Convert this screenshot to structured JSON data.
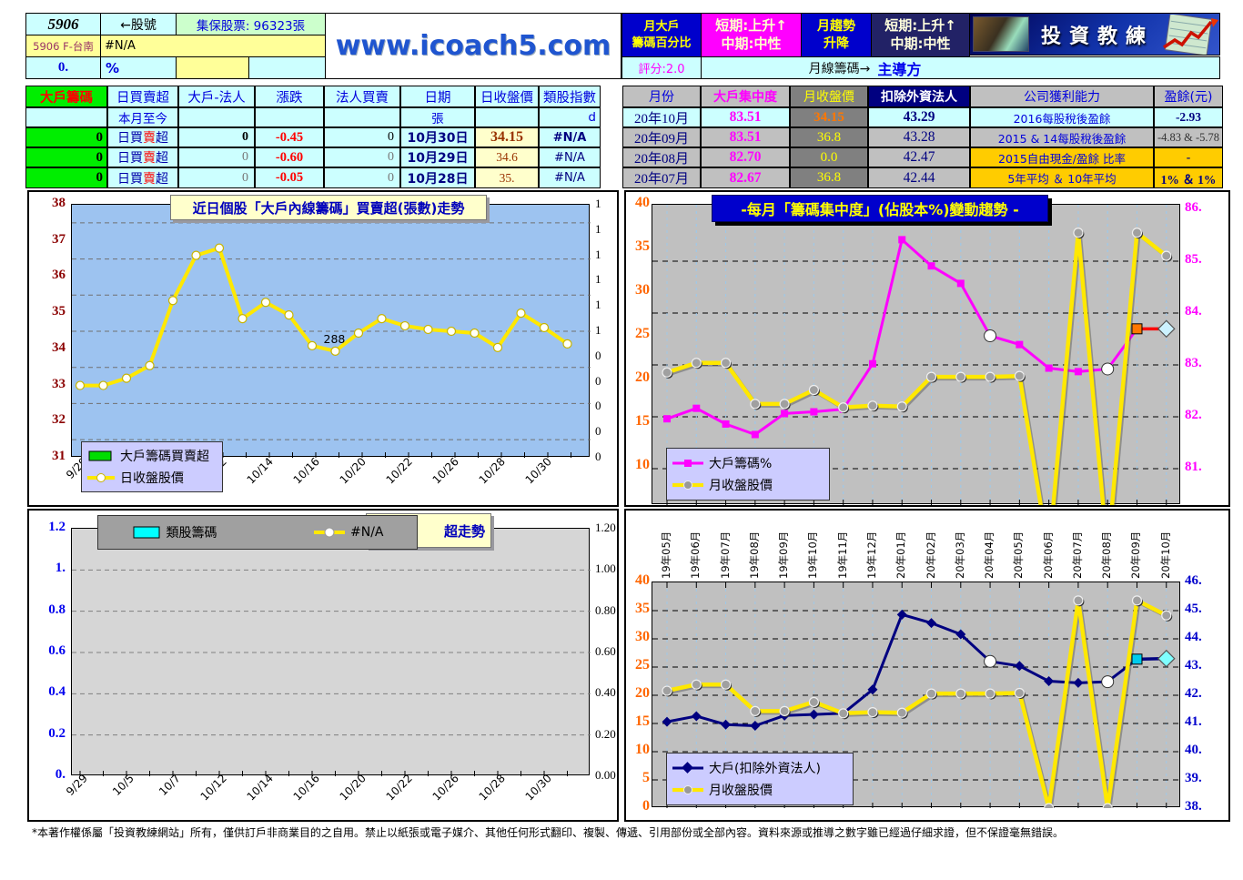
{
  "header": {
    "stock_id": "5906",
    "stock_id_arrow": "←股號",
    "custody_shares": "集保股票: 96323張",
    "stock_name": "5906 F-台南",
    "name_na": "#N/A",
    "zero_value": "0.",
    "percent_label": "%",
    "website": "www.icoach5.com",
    "monthly_major_line1": "月大戶",
    "monthly_major_line2": "籌碼百分比",
    "signal1_line1": "短期:上升↑",
    "signal1_line2": "中期:中性",
    "trend_line1": "月趨勢",
    "trend_line2": "升降",
    "signal2_line1": "短期:上升↑",
    "signal2_line2": "中期:中性",
    "logo_text": "投資教練",
    "score": "評分:2.0",
    "monthly_chips_label": "月線籌碼→",
    "dominant_label": "主導方"
  },
  "left_table": {
    "headers": [
      "大戶籌碼",
      "日買賣超",
      "大戶-法人",
      "漲跌",
      "法人買賣",
      "日期",
      "日收盤價",
      "類股指數"
    ],
    "subrow": {
      "c1": "本月至今",
      "c5": "張",
      "c7": "d"
    },
    "rows": [
      {
        "chips": "0",
        "daily": "日買賣超",
        "red_char": "賣",
        "major_legal": "0",
        "change": "-0.45",
        "legal_trade": "0",
        "date": "10月30日",
        "close": "34.15",
        "sector_index": "#N/A"
      },
      {
        "chips": "0",
        "daily": "日買賣超",
        "red_char": "賣",
        "major_legal": "0",
        "change": "-0.60",
        "legal_trade": "0",
        "date": "10月29日",
        "close": "34.6",
        "sector_index": "#N/A"
      },
      {
        "chips": "0",
        "daily": "日買賣超",
        "red_char": "賣",
        "major_legal": "0",
        "change": "-0.05",
        "legal_trade": "0",
        "date": "10月28日",
        "close": "35.",
        "sector_index": "#N/A"
      }
    ]
  },
  "right_table": {
    "headers": [
      "月份",
      "大戶集中度",
      "月收盤價",
      "扣除外資法人",
      "公司獲利能力",
      "盈餘(元)"
    ],
    "rows": [
      {
        "month": "20年10月",
        "concentration": "83.51",
        "close": "34.15",
        "ex_foreign": "43.29",
        "profit_label": "2016每股稅後盈餘",
        "profit_value": "-2.93"
      },
      {
        "month": "20年09月",
        "concentration": "83.51",
        "close": "36.8",
        "ex_foreign": "43.28",
        "profit_label": "2015 & 14每股稅後盈餘",
        "profit_value": "-4.83 & -5.78"
      },
      {
        "month": "20年08月",
        "concentration": "82.70",
        "close": "0.0",
        "ex_foreign": "42.47",
        "profit_label": "2015自由現金/盈餘 比率",
        "profit_value": "-"
      },
      {
        "month": "20年07月",
        "concentration": "82.67",
        "close": "36.8",
        "ex_foreign": "42.44",
        "profit_label": "5年平均 ＆ 10年平均",
        "profit_value": "1% ＆ 1%"
      }
    ]
  },
  "chart_data": [
    {
      "id": "daily-insider-chips",
      "type": "line",
      "title": "近日個股「大戶內線籌碼」買賣超(張數)走勢",
      "x_tick_labels": [
        "9/29",
        "10/5",
        "10/7",
        "10/12",
        "10/14",
        "10/16",
        "10/20",
        "10/22",
        "10/26",
        "10/28",
        "10/30"
      ],
      "left_axis": {
        "ticks": [
          "38",
          "37",
          "36",
          "35",
          "34",
          "33",
          "32",
          "31"
        ],
        "min": 31,
        "max": 38,
        "color": "#8B0000"
      },
      "right_axis": {
        "ticks": [
          "1",
          "1",
          "1",
          "1",
          "1",
          "1",
          "0",
          "0",
          "0",
          "0",
          "0"
        ],
        "color": "#000000"
      },
      "plot_bg": "#9DC3F0",
      "annotation": {
        "text": "288",
        "index": 11
      },
      "series": [
        {
          "name": "大戶籌碼買賣超",
          "type": "bar",
          "color": "#00DD00",
          "values": []
        },
        {
          "name": "日收盤股價",
          "type": "line",
          "color": "#FFE800",
          "marker": "white-circle",
          "values": [
            33.0,
            33.0,
            33.2,
            33.55,
            35.35,
            36.6,
            36.8,
            34.85,
            35.3,
            34.95,
            34.1,
            33.95,
            34.45,
            34.85,
            34.65,
            34.55,
            34.5,
            34.45,
            34.05,
            35.0,
            34.6,
            34.15
          ]
        }
      ]
    },
    {
      "id": "sector-chips",
      "type": "line",
      "partial_title": "超走勢",
      "x_tick_labels": [
        "9/29",
        "10/5",
        "10/7",
        "10/12",
        "10/14",
        "10/16",
        "10/20",
        "10/22",
        "10/26",
        "10/28",
        "10/30"
      ],
      "left_axis": {
        "ticks": [
          "1.2",
          "1.",
          "0.8",
          "0.6",
          "0.4",
          "0.2",
          "0."
        ],
        "min": 0,
        "max": 1.2,
        "color": "#0000EE"
      },
      "right_axis": {
        "ticks": [
          "1.20",
          "1.00",
          "0.80",
          "0.60",
          "0.40",
          "0.20",
          "0.00"
        ],
        "color": "#000000"
      },
      "plot_bg": "#D6D6D6",
      "series": [
        {
          "name": "類股籌碼",
          "type": "bar",
          "color": "#00FFFF",
          "values": []
        },
        {
          "name": "#N/A",
          "type": "line",
          "color": "#FFE800",
          "marker": "white-circle",
          "values": []
        }
      ]
    },
    {
      "id": "monthly-concentration",
      "type": "line",
      "title": "-每月「籌碼集中度」(佔股本%)變動趨勢 -",
      "categories": [
        "19年05月",
        "19年06月",
        "19年07月",
        "19年08月",
        "19年09月",
        "19年10月",
        "19年11月",
        "19年12月",
        "20年01月",
        "20年02月",
        "20年03月",
        "20年04月",
        "20年05月",
        "20年06月",
        "20年07月",
        "20年08月",
        "20年09月",
        "20年10月"
      ],
      "left_axis": {
        "ticks": [
          "40",
          "35",
          "30",
          "25",
          "20",
          "15",
          "10"
        ],
        "min": 5.6,
        "max": 40,
        "color": "#FF6600"
      },
      "right_axis": {
        "ticks": [
          "86.",
          "85.",
          "84.",
          "83.",
          "82.",
          "81."
        ],
        "color": "#FF00FF"
      },
      "plot_bg": "#C0C0C0",
      "series": [
        {
          "name": "大戶籌碼%",
          "axis": "right",
          "color": "#FF00FF",
          "marker": "square",
          "values_plot_scale": [
            15.5,
            16.7,
            14.9,
            13.7,
            16.1,
            16.3,
            16.6,
            21.8,
            36.0,
            33.0,
            31.0,
            25.0,
            24.0,
            21.3,
            20.9,
            21.2,
            25.8,
            25.8
          ],
          "known_values": {
            "20年07月": 82.67,
            "20年08月": 82.7,
            "20年09月": 83.51,
            "20年10月": 83.51
          }
        },
        {
          "name": "月收盤股價",
          "axis": "left",
          "color": "#FFE800",
          "marker": "gray-circle",
          "values_plot_scale": [
            20.8,
            21.9,
            21.9,
            17.2,
            17.2,
            18.8,
            16.8,
            17.0,
            16.9,
            20.3,
            20.3,
            20.3,
            20.4,
            0.0,
            36.8,
            0.0,
            36.8,
            34.15
          ],
          "known_values": {
            "20年07月": 36.8,
            "20年08月": 0.0,
            "20年09月": 36.8,
            "20年10月": 34.15
          }
        }
      ],
      "highlight_circle_indices": [
        11,
        15
      ],
      "end_markers": {
        "square_index": 16,
        "diamond_index": 17,
        "square_color": "#FF7700",
        "connector_color": "#FF0000",
        "diamond_color": "#CCF2FF"
      }
    },
    {
      "id": "monthly-ex-foreign",
      "type": "line",
      "categories": [
        "19年05月",
        "19年06月",
        "19年07月",
        "19年08月",
        "19年09月",
        "19年10月",
        "19年11月",
        "19年12月",
        "20年01月",
        "20年02月",
        "20年03月",
        "20年04月",
        "20年05月",
        "20年06月",
        "20年07月",
        "20年08月",
        "20年09月",
        "20年10月"
      ],
      "left_axis": {
        "ticks": [
          "40",
          "35",
          "30",
          "25",
          "20",
          "15",
          "10",
          "5",
          "0"
        ],
        "min": 0,
        "max": 40,
        "color": "#FF6600"
      },
      "right_axis": {
        "ticks": [
          "46.",
          "45.",
          "44.",
          "43.",
          "42.",
          "41.",
          "40.",
          "39.",
          "38."
        ],
        "color": "#0000CC"
      },
      "plot_bg": "#C0C0C0",
      "series": [
        {
          "name": "大戶(扣除外資法人)",
          "axis": "right",
          "color": "#000080",
          "marker": "diamond",
          "values_plot_scale": [
            15.3,
            16.3,
            14.8,
            14.6,
            16.4,
            16.6,
            16.8,
            21.0,
            34.3,
            32.8,
            30.8,
            26.0,
            25.2,
            22.5,
            22.2,
            22.4,
            26.4,
            26.5
          ],
          "known_values": {
            "20年07月": 42.44,
            "20年08月": 42.47,
            "20年09月": 43.28,
            "20年10月": 43.29
          }
        },
        {
          "name": "月收盤股價",
          "axis": "left",
          "color": "#FFE800",
          "marker": "gray-circle",
          "values_plot_scale": [
            20.8,
            21.9,
            21.9,
            17.2,
            17.2,
            18.8,
            16.8,
            17.0,
            16.9,
            20.3,
            20.3,
            20.3,
            20.4,
            0.0,
            36.8,
            0.0,
            36.8,
            34.15
          ]
        }
      ],
      "highlight_circle_indices": [
        11,
        15
      ],
      "end_markers": {
        "square_index": 16,
        "diamond_index": 17,
        "square_color": "#00CCEE",
        "connector_color": "#000080",
        "diamond_color": "#7FFFFF"
      }
    }
  ],
  "footer": "*本著作權係屬「投資教練網站」所有，僅供訂戶非商業目的之自用。禁止以紙張或電子媒介、其他任何形式翻印、複製、傳遞、引用部份或全部內容。資料來源或推導之數字雖已經過仔細求證，但不保證毫無錯誤。"
}
